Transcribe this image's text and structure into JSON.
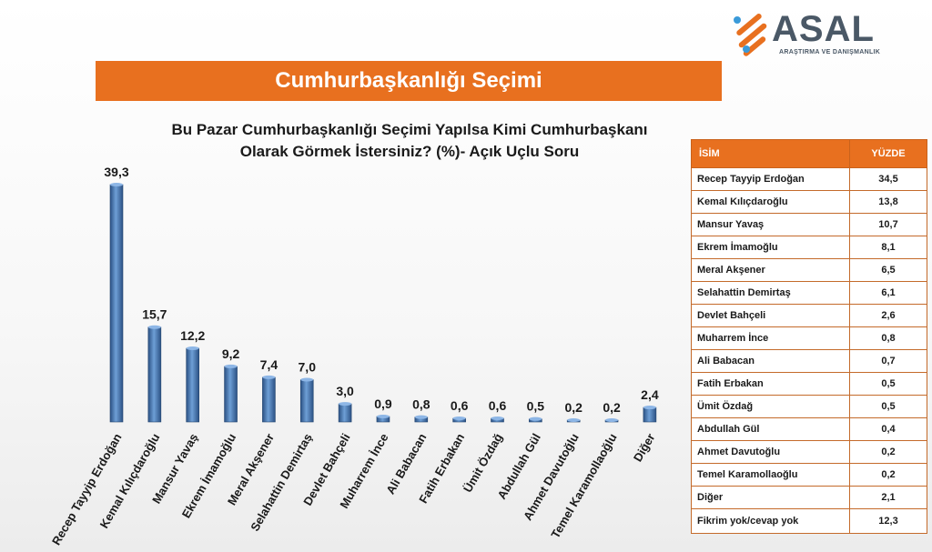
{
  "logo": {
    "word": "ASAL",
    "sub": "ARAŞTIRMA VE DANIŞMANLIK"
  },
  "banner": {
    "title": "Cumhurbaşkanlığı Seçimi"
  },
  "colors": {
    "accent": "#e8701f",
    "bar": "#3f6ea8",
    "text": "#1a1a1a"
  },
  "chart_data": {
    "type": "bar",
    "title_lines": [
      "Bu Pazar Cumhurbaşkanlığı Seçimi Yapılsa Kimi Cumhurbaşkanı",
      "Olarak Görmek İstersiniz? (%)- Açık Uçlu Soru"
    ],
    "categories": [
      "Recep Tayyip Erdoğan",
      "Kemal Kılıçdaroğlu",
      "Mansur Yavaş",
      "Ekrem İmamoğlu",
      "Meral Akşener",
      "Selahattin Demirtaş",
      "Devlet Bahçeli",
      "Muharrem İnce",
      "Ali Babacan",
      "Fatih Erbakan",
      "Ümit Özdağ",
      "Abdullah Gül",
      "Ahmet Davutoğlu",
      "Temel Karamollaoğlu",
      "Diğer"
    ],
    "values": [
      39.3,
      15.7,
      12.2,
      9.2,
      7.4,
      7.0,
      3.0,
      0.9,
      0.8,
      0.6,
      0.6,
      0.5,
      0.2,
      0.2,
      2.4
    ],
    "labels": [
      "39,3",
      "15,7",
      "12,2",
      "9,2",
      "7,4",
      "7,0",
      "3,0",
      "0,9",
      "0,8",
      "0,6",
      "0,6",
      "0,5",
      "0,2",
      "0,2",
      "2,4"
    ],
    "ylim": [
      0,
      40
    ],
    "grid": false,
    "legend": "none"
  },
  "table": {
    "headers": {
      "name": "İSİM",
      "pct": "YÜZDE"
    },
    "rows": [
      {
        "name": "Recep Tayyip Erdoğan",
        "value": "34,5"
      },
      {
        "name": "Kemal Kılıçdaroğlu",
        "value": "13,8"
      },
      {
        "name": "Mansur Yavaş",
        "value": "10,7"
      },
      {
        "name": "Ekrem İmamoğlu",
        "value": "8,1"
      },
      {
        "name": "Meral Akşener",
        "value": "6,5"
      },
      {
        "name": "Selahattin Demirtaş",
        "value": "6,1"
      },
      {
        "name": "Devlet Bahçeli",
        "value": "2,6"
      },
      {
        "name": "Muharrem İnce",
        "value": "0,8"
      },
      {
        "name": "Ali Babacan",
        "value": "0,7"
      },
      {
        "name": "Fatih Erbakan",
        "value": "0,5"
      },
      {
        "name": "Ümit Özdağ",
        "value": "0,5"
      },
      {
        "name": "Abdullah Gül",
        "value": "0,4"
      },
      {
        "name": "Ahmet Davutoğlu",
        "value": "0,2"
      },
      {
        "name": "Temel Karamollaoğlu",
        "value": "0,2"
      },
      {
        "name": "Diğer",
        "value": "2,1"
      },
      {
        "name": "Fikrim yok/cevap yok",
        "value": "12,3"
      }
    ]
  }
}
